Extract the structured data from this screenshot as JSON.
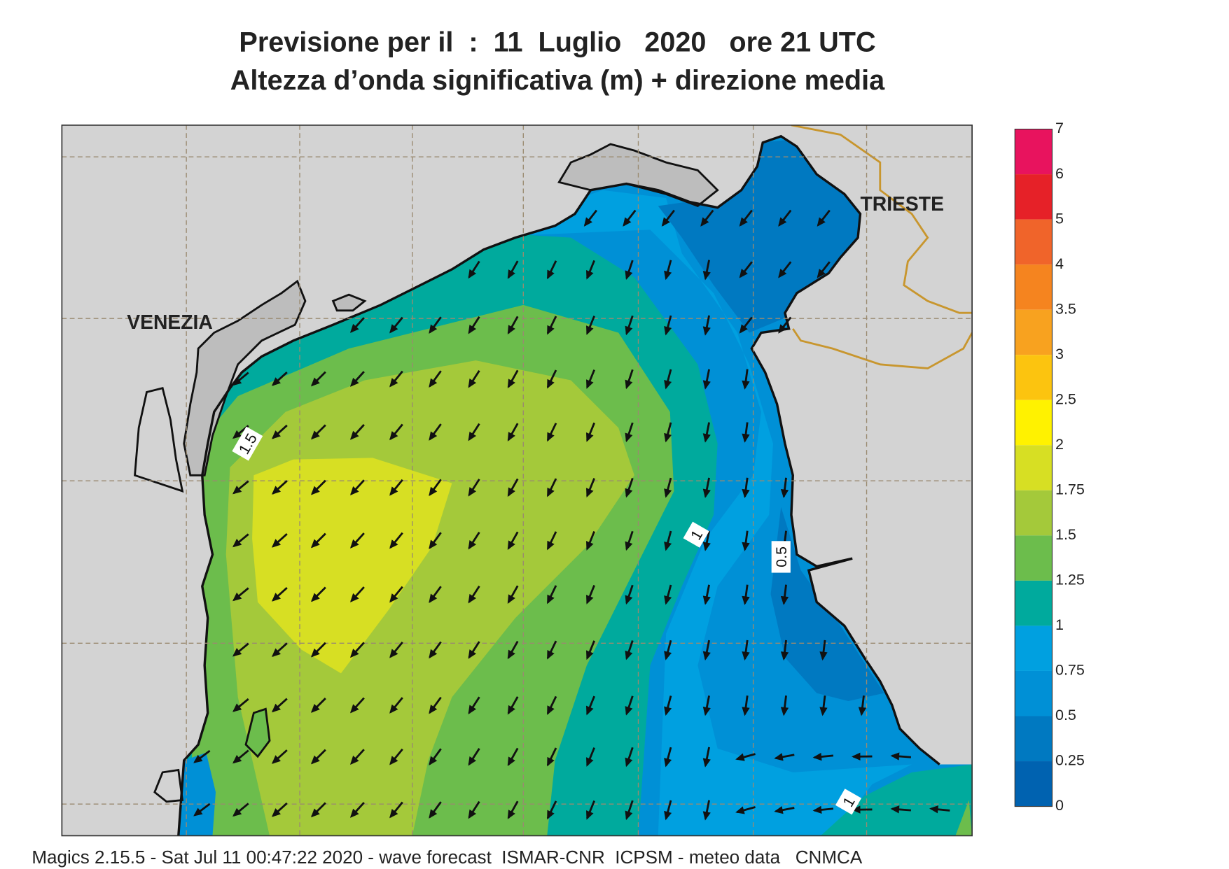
{
  "header": {
    "title": "Previsione per il  :  11  Luglio   2020   ore 21 UTC",
    "subtitle": "Altezza d’onda significativa (m) + direzione media"
  },
  "map": {
    "places": [
      "VENEZIA",
      "TRIESTE"
    ],
    "contour_labels": [
      "1.5",
      "1",
      "0.5",
      "1"
    ]
  },
  "legend": {
    "levels": [
      "7",
      "6",
      "5",
      "4",
      "3.5",
      "3",
      "2.5",
      "2",
      "1.75",
      "1.5",
      "1.25",
      "1",
      "0.75",
      "0.5",
      "0.25",
      "0"
    ],
    "colors": [
      "#e8135e",
      "#e62128",
      "#f0642a",
      "#f5841f",
      "#f8a21f",
      "#fcc40f",
      "#fff200",
      "#d7df23",
      "#a4c93a",
      "#6cbd4c",
      "#00aa9d",
      "#00a0e0",
      "#0090d6",
      "#0079c1",
      "#0062b0"
    ]
  },
  "footer": "Magics 2.15.5 - Sat Jul 11 00:47:22 2020 - wave forecast  ISMAR-CNR  ICPSM - meteo data   CNMCA"
}
